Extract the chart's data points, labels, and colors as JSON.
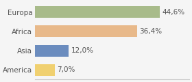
{
  "categories": [
    "Europa",
    "Africa",
    "Asia",
    "America"
  ],
  "values": [
    44.6,
    36.4,
    12.0,
    7.0
  ],
  "labels": [
    "44,6%",
    "36,4%",
    "12,0%",
    "7,0%"
  ],
  "bar_colors": [
    "#a8bb8a",
    "#e8b98a",
    "#6b8cbe",
    "#f0d070"
  ],
  "background_color": "#f5f5f5",
  "xlim": [
    0,
    55
  ],
  "label_fontsize": 7.5,
  "tick_fontsize": 7.5
}
